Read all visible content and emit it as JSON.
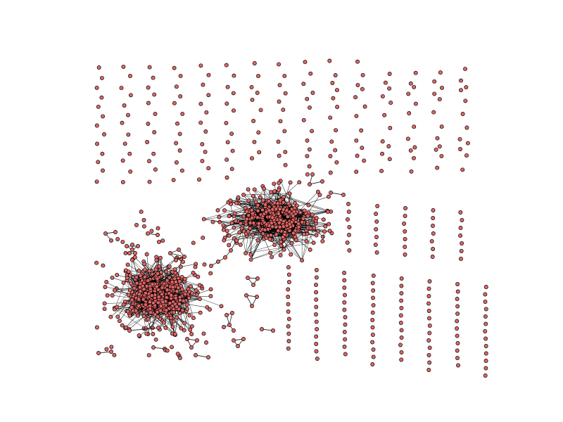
{
  "figure": {
    "kind": "network graph",
    "node_fill": "#e06666",
    "node_stroke": "#000000",
    "edge_color": "#000000",
    "background": "#ffffff"
  },
  "components": [
    {
      "name": "cluster-large-center",
      "type": "dense cluster"
    },
    {
      "name": "cluster-large-left",
      "type": "dense cluster"
    },
    {
      "name": "small-component-star",
      "type": "small cluster"
    },
    {
      "name": "small-component-triangles",
      "type": "triangles"
    },
    {
      "name": "isolated-nodes",
      "type": "grid of isolates"
    }
  ]
}
